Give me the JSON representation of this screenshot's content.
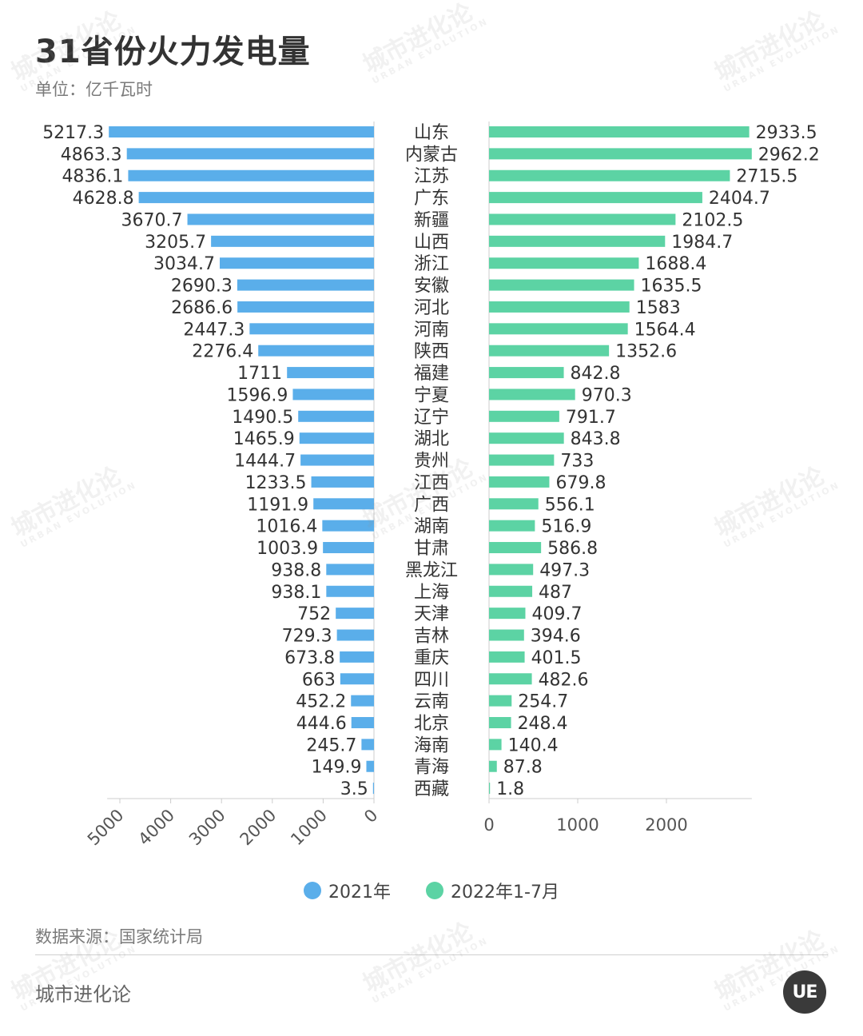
{
  "title": "31省份火力发电量",
  "unit": "单位：亿千瓦时",
  "source": "数据来源：国家统计局",
  "footer": "城市进化论",
  "logo": "UE",
  "watermark": {
    "cn": "城市进化论",
    "en": "URBAN EVOLUTION"
  },
  "colors": {
    "series_2021": "#5aaeea",
    "series_2022": "#5cd3a4",
    "axis": "#cccccc"
  },
  "chart_data": {
    "type": "bar",
    "orientation": "horizontal-butterfly",
    "categories": [
      "山东",
      "内蒙古",
      "江苏",
      "广东",
      "新疆",
      "山西",
      "浙江",
      "安徽",
      "河北",
      "河南",
      "陕西",
      "福建",
      "宁夏",
      "辽宁",
      "湖北",
      "贵州",
      "江西",
      "广西",
      "湖南",
      "甘肃",
      "黑龙江",
      "上海",
      "天津",
      "吉林",
      "重庆",
      "四川",
      "云南",
      "北京",
      "海南",
      "青海",
      "西藏"
    ],
    "series": [
      {
        "name": "2021年",
        "values": [
          5217.3,
          4863.3,
          4836.1,
          4628.8,
          3670.7,
          3205.7,
          3034.7,
          2690.3,
          2686.6,
          2447.3,
          2276.4,
          1711,
          1596.9,
          1490.5,
          1465.9,
          1444.7,
          1233.5,
          1191.9,
          1016.4,
          1003.9,
          938.8,
          938.1,
          752,
          729.3,
          673.8,
          663,
          452.2,
          444.6,
          245.7,
          149.9,
          3.5
        ]
      },
      {
        "name": "2022年1-7月",
        "values": [
          2933.5,
          2962.2,
          2715.5,
          2404.7,
          2102.5,
          1984.7,
          1688.4,
          1635.5,
          1583,
          1564.4,
          1352.6,
          842.8,
          970.3,
          791.7,
          843.8,
          733,
          679.8,
          556.1,
          516.9,
          586.8,
          497.3,
          487,
          409.7,
          394.6,
          401.5,
          482.6,
          254.7,
          248.4,
          140.4,
          87.8,
          1.8
        ]
      }
    ],
    "left_axis": {
      "ticks": [
        5000,
        4000,
        3000,
        2000,
        1000,
        0
      ],
      "range": [
        0,
        5217.3
      ]
    },
    "right_axis": {
      "ticks": [
        0,
        1000,
        2000
      ],
      "range": [
        0,
        2962.2
      ]
    }
  }
}
